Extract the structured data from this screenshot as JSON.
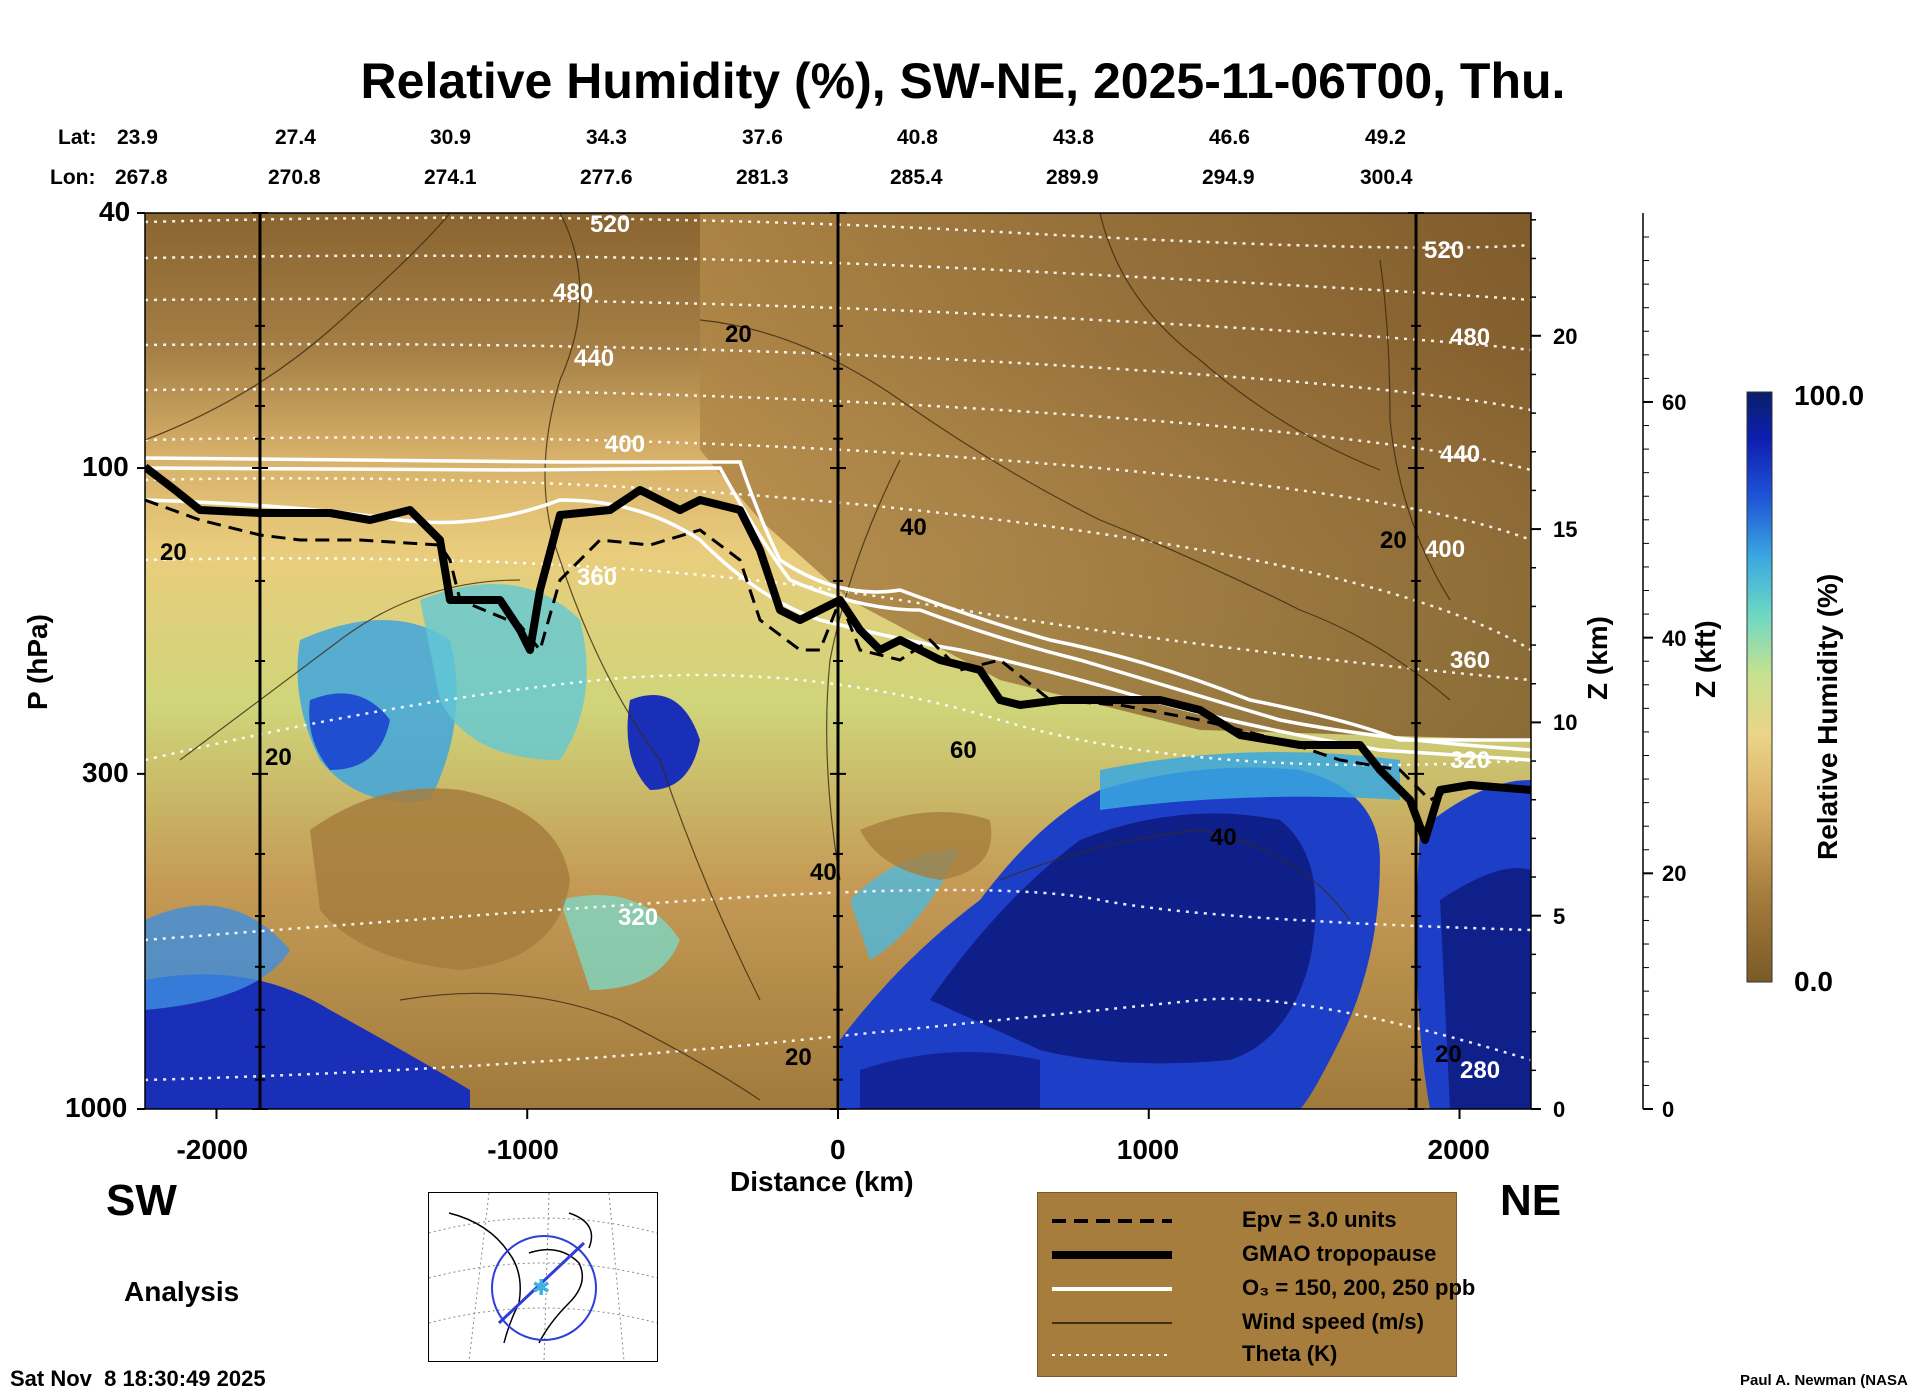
{
  "title": "Relative Humidity (%), SW-NE, 2025-11-06T00, Thu.",
  "lat_label": "Lat:",
  "lon_label": "Lon:",
  "lats": [
    "23.9",
    "27.4",
    "30.9",
    "34.3",
    "37.6",
    "40.8",
    "43.8",
    "46.6",
    "49.2"
  ],
  "lons": [
    "267.8",
    "270.8",
    "274.1",
    "277.6",
    "281.3",
    "285.4",
    "289.9",
    "294.9",
    "300.4"
  ],
  "direction_left": "SW",
  "direction_right": "NE",
  "analysis_label": "Analysis",
  "timestamp": "Sat Nov  8 18:30:49 2025",
  "credit": "Paul A. Newman (NASA",
  "legend": [
    {
      "label": "Epv = 3.0 units",
      "style": "dashed"
    },
    {
      "label": "GMAO tropopause",
      "style": "thick"
    },
    {
      "label": "O₃ = 150, 200, 250 ppb",
      "style": "white"
    },
    {
      "label": "Wind speed (m/s)",
      "style": "thin"
    },
    {
      "label": "Theta (K)",
      "style": "dotted"
    }
  ],
  "colorbar": {
    "top_label": "100.0",
    "bottom_label": "0.0",
    "title": "Relative Humidity (%)"
  },
  "chart_data": {
    "type": "heatmap",
    "title": "Relative Humidity (%), SW-NE, 2025-11-06T00, Thu.",
    "xlabel": "Distance (km)",
    "ylabel": "P (hPa)",
    "y2label": "Z (km)",
    "y3label": "Z (kft)",
    "xlim": [
      -2230,
      2230
    ],
    "ylim": [
      1000,
      40
    ],
    "y_scale": "log",
    "x_ticks": [
      -2000,
      -1000,
      0,
      1000,
      2000
    ],
    "y_ticks": [
      40,
      100,
      300,
      1000
    ],
    "z_km_ticks": [
      0,
      5,
      10,
      15,
      20
    ],
    "z_kft_ticks": [
      0,
      20,
      40,
      60
    ],
    "vertical_lines_km": [
      -1860,
      0,
      1860
    ],
    "colorbar_range": [
      0.0,
      100.0
    ],
    "colorbar_label": "Relative Humidity (%)",
    "tropopause": {
      "distance_km": [
        -2230,
        -2100,
        -1950,
        -1700,
        -1550,
        -1450,
        -1300,
        -1250,
        -1100,
        -1000,
        -950,
        -800,
        -700,
        -600,
        -450,
        -300,
        -250,
        -180,
        -100,
        0,
        100,
        200,
        350,
        500,
        700,
        1000,
        1150,
        1250,
        1500,
        1700,
        1800,
        1870,
        1950,
        2230
      ],
      "pressure_hPa": [
        100,
        112,
        115,
        115,
        120,
        115,
        140,
        165,
        170,
        185,
        125,
        122,
        110,
        122,
        115,
        120,
        140,
        160,
        150,
        165,
        175,
        185,
        200,
        215,
        215,
        220,
        230,
        240,
        240,
        240,
        270,
        340,
        300,
        305
      ]
    },
    "theta_contours": [
      {
        "value": 520,
        "label_pressure_hPa": 41
      },
      {
        "value": 480,
        "label_pressure_hPa": 53
      },
      {
        "value": 440,
        "label_pressure_hPa": 66
      },
      {
        "value": 400,
        "label_pressure_hPa": 96
      },
      {
        "value": 360,
        "label_pressure_hPa": 150
      },
      {
        "value": 320,
        "label_pressure_hPa": 540
      },
      {
        "value": 280,
        "label_pressure_hPa": 940
      }
    ],
    "wind_speed_labels": [
      20,
      20,
      20,
      40,
      60,
      40,
      40,
      20,
      20
    ]
  }
}
